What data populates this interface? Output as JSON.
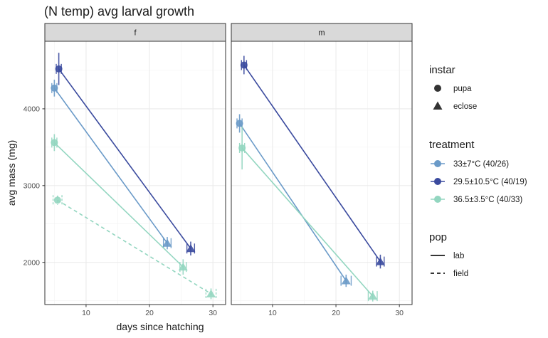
{
  "chart_data": {
    "type": "scatter",
    "title": "(N temp) avg larval growth",
    "xlabel": "days since hatching",
    "ylabel": "avg mass (mg)",
    "xlim": [
      3.5,
      32
    ],
    "ylim": [
      1450,
      4880
    ],
    "x_ticks": [
      10,
      20,
      30
    ],
    "y_ticks": [
      2000,
      3000,
      4000
    ],
    "grid": true,
    "facets": [
      "f",
      "m"
    ],
    "legend_position": "right",
    "legends": {
      "instar": {
        "title": "instar",
        "items": [
          {
            "label": "pupa",
            "shape": "circle"
          },
          {
            "label": "eclose",
            "shape": "triangle"
          }
        ]
      },
      "treatment": {
        "title": "treatment",
        "items": [
          {
            "label": "33±7°C (40/26)",
            "color": "#6a9ac8"
          },
          {
            "label": "29.5±10.5°C (40/19)",
            "color": "#3a4a9e"
          },
          {
            "label": "36.5±3.5°C (40/33)",
            "color": "#93d6c0"
          }
        ]
      },
      "pop": {
        "title": "pop",
        "items": [
          {
            "label": "lab",
            "linetype": "solid"
          },
          {
            "label": "field",
            "linetype": "dashed"
          }
        ]
      }
    },
    "series": [
      {
        "facet": "f",
        "treatment": "33±7°C (40/26)",
        "pop": "lab",
        "color": "#6a9ac8",
        "points": [
          {
            "instar": "pupa",
            "x": 5.0,
            "y": 4270,
            "xerr": 0.4,
            "yerr": 110
          },
          {
            "instar": "eclose",
            "x": 22.8,
            "y": 2250,
            "xerr": 0.6,
            "yerr": 80
          }
        ]
      },
      {
        "facet": "f",
        "treatment": "29.5±10.5°C (40/19)",
        "pop": "lab",
        "color": "#3a4a9e",
        "points": [
          {
            "instar": "pupa",
            "x": 5.7,
            "y": 4520,
            "xerr": 0.4,
            "yerr": 210
          },
          {
            "instar": "eclose",
            "x": 26.5,
            "y": 2180,
            "xerr": 0.6,
            "yerr": 90
          }
        ]
      },
      {
        "facet": "f",
        "treatment": "36.5±3.5°C (40/33)",
        "pop": "lab",
        "color": "#93d6c0",
        "points": [
          {
            "instar": "pupa",
            "x": 5.0,
            "y": 3560,
            "xerr": 0.4,
            "yerr": 110
          },
          {
            "instar": "eclose",
            "x": 25.3,
            "y": 1940,
            "xerr": 0.5,
            "yerr": 100
          }
        ]
      },
      {
        "facet": "f",
        "treatment": "36.5±3.5°C (40/33)",
        "pop": "field",
        "color": "#93d6c0",
        "points": [
          {
            "instar": "pupa",
            "x": 5.5,
            "y": 2810,
            "xerr": 0.7,
            "yerr": 60
          },
          {
            "instar": "eclose",
            "x": 29.7,
            "y": 1590,
            "xerr": 0.8,
            "yerr": 70
          }
        ]
      },
      {
        "facet": "m",
        "treatment": "33±7°C (40/26)",
        "pop": "lab",
        "color": "#6a9ac8",
        "points": [
          {
            "instar": "pupa",
            "x": 4.8,
            "y": 3810,
            "xerr": 0.4,
            "yerr": 120
          },
          {
            "instar": "eclose",
            "x": 21.6,
            "y": 1760,
            "xerr": 0.8,
            "yerr": 80
          }
        ]
      },
      {
        "facet": "m",
        "treatment": "29.5±10.5°C (40/19)",
        "pop": "lab",
        "color": "#3a4a9e",
        "points": [
          {
            "instar": "pupa",
            "x": 5.5,
            "y": 4570,
            "xerr": 0.4,
            "yerr": 120
          },
          {
            "instar": "eclose",
            "x": 27.0,
            "y": 2010,
            "xerr": 0.6,
            "yerr": 90
          }
        ]
      },
      {
        "facet": "m",
        "treatment": "36.5±3.5°C (40/33)",
        "pop": "lab",
        "color": "#93d6c0",
        "points": [
          {
            "instar": "pupa",
            "x": 5.2,
            "y": 3490,
            "xerr": 0.4,
            "yerr": 280
          },
          {
            "instar": "eclose",
            "x": 25.8,
            "y": 1560,
            "xerr": 0.7,
            "yerr": 70
          }
        ]
      }
    ]
  }
}
